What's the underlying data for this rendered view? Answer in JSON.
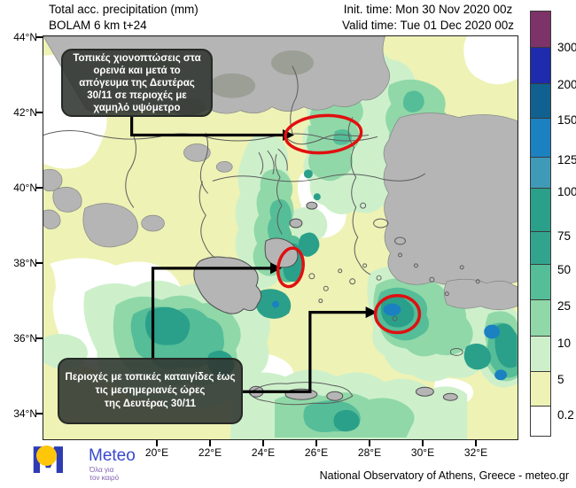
{
  "header": {
    "title_line1": "Total acc. precipitation (mm)",
    "title_line2": "BOLAM 6 km t+24",
    "init_time": "Init. time: Mon 30 Nov 2020 00z",
    "valid_time": "Valid time: Tue 01 Dec 2020 00z"
  },
  "map": {
    "lat_labels": [
      "44°N",
      "42°N",
      "40°N",
      "38°N",
      "36°N",
      "34°N"
    ],
    "lon_labels": [
      "20°E",
      "22°E",
      "24°E",
      "26°E",
      "28°E",
      "30°E",
      "32°E"
    ]
  },
  "annotations": {
    "box_snow_lines": [
      "Τοπικές χιονοπτώσεις στα",
      "ορεινά και μετά το",
      "απόγευμα της Δευτέρας",
      "30/11 σε περιοχές με",
      "χαμηλό υψόμετρο"
    ],
    "box_storm_lines": [
      "Περιοχές με τοπικές καταιγίδες έως",
      "τις μεσημεριανές ώρες",
      "της Δευτέρας 30/11"
    ]
  },
  "legend": {
    "labels": [
      "300",
      "200",
      "150",
      "125",
      "100",
      "75",
      "50",
      "25",
      "10",
      "5",
      "0.2"
    ],
    "colors": [
      "#7d3268",
      "#1e2bac",
      "#10618f",
      "#1b81c1",
      "#3f9ab8",
      "#2aa08a",
      "#32a48d",
      "#55bd98",
      "#90d8a8",
      "#cdf0cb",
      "#eef2b4",
      "#ffffff"
    ]
  },
  "branding": {
    "logo_m": "M",
    "logo_text": "Meteo",
    "logo_tagline1": "Όλα για",
    "logo_tagline2": "τον καιρό",
    "credit": "National Observatory of Athens, Greece - meteo.gr"
  },
  "colors": {
    "annotation_red": "#e01010",
    "arrow_black": "#000000"
  }
}
